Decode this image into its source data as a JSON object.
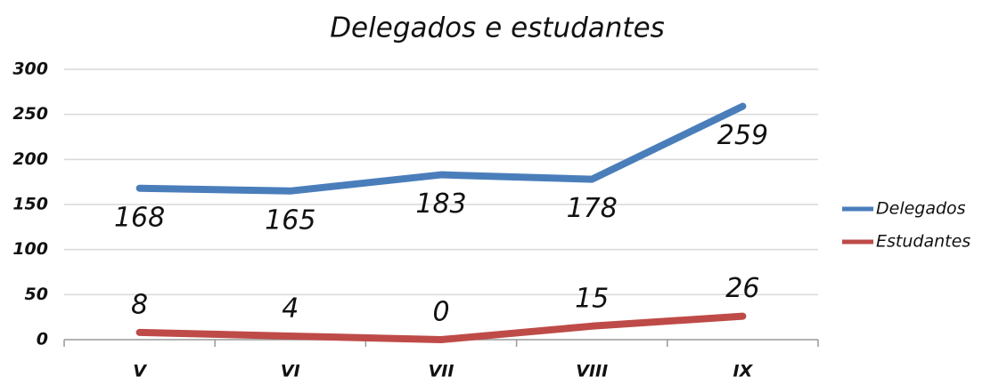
{
  "chart_data": {
    "type": "line",
    "title": "Delegados e estudantes",
    "categories": [
      "V",
      "VI",
      "VII",
      "VIII",
      "IX"
    ],
    "series": [
      {
        "name": "Delegados",
        "color": "#4a7ebb",
        "values": [
          168,
          165,
          183,
          178,
          259
        ]
      },
      {
        "name": "Estudantes",
        "color": "#be4b48",
        "values": [
          8,
          4,
          0,
          15,
          26
        ]
      }
    ],
    "ylim": [
      0,
      300
    ],
    "yticks": [
      0,
      50,
      100,
      150,
      200,
      250,
      300
    ],
    "grid": true,
    "legend": "right"
  }
}
